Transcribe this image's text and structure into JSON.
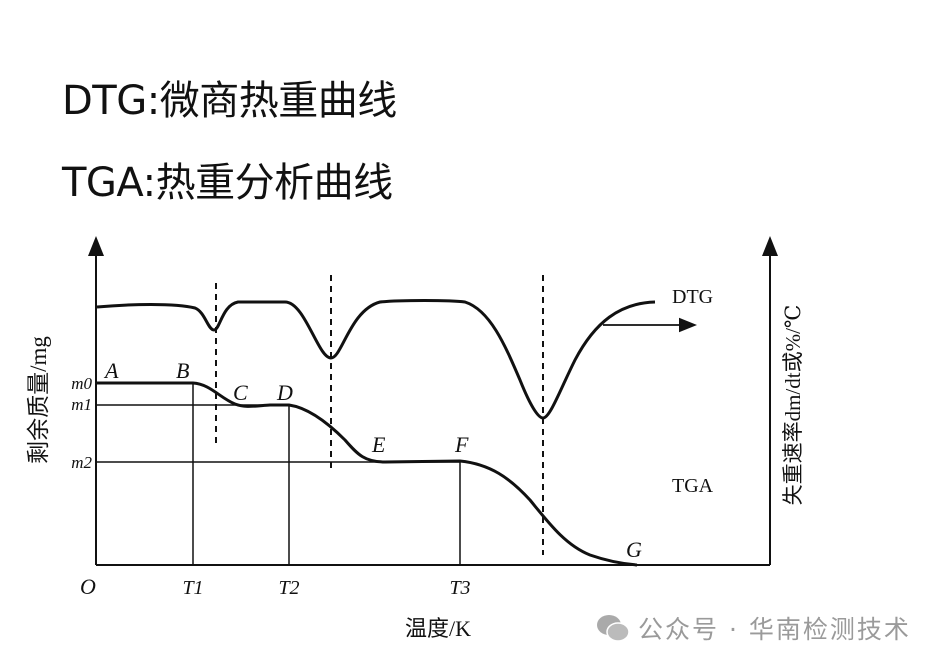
{
  "titles": {
    "line1": "DTG:微商热重曲线",
    "line2": "TGA:热重分析曲线"
  },
  "diagram": {
    "left_axis_label": "剩余质量/mg",
    "right_axis_label": "失重速率dm/dt或%/℃",
    "x_axis_label": "温度/K",
    "origin": "O",
    "y_ticks": [
      "m0",
      "m1",
      "m2"
    ],
    "x_ticks": [
      "T1",
      "T2",
      "T3"
    ],
    "points": [
      "A",
      "B",
      "C",
      "D",
      "E",
      "F",
      "G"
    ],
    "curve_labels": {
      "dtg": "DTG",
      "tga": "TGA"
    },
    "line_color": "#111111"
  },
  "watermark": {
    "icon": "wechat-icon",
    "text": "公众号 · 华南检测技术"
  }
}
